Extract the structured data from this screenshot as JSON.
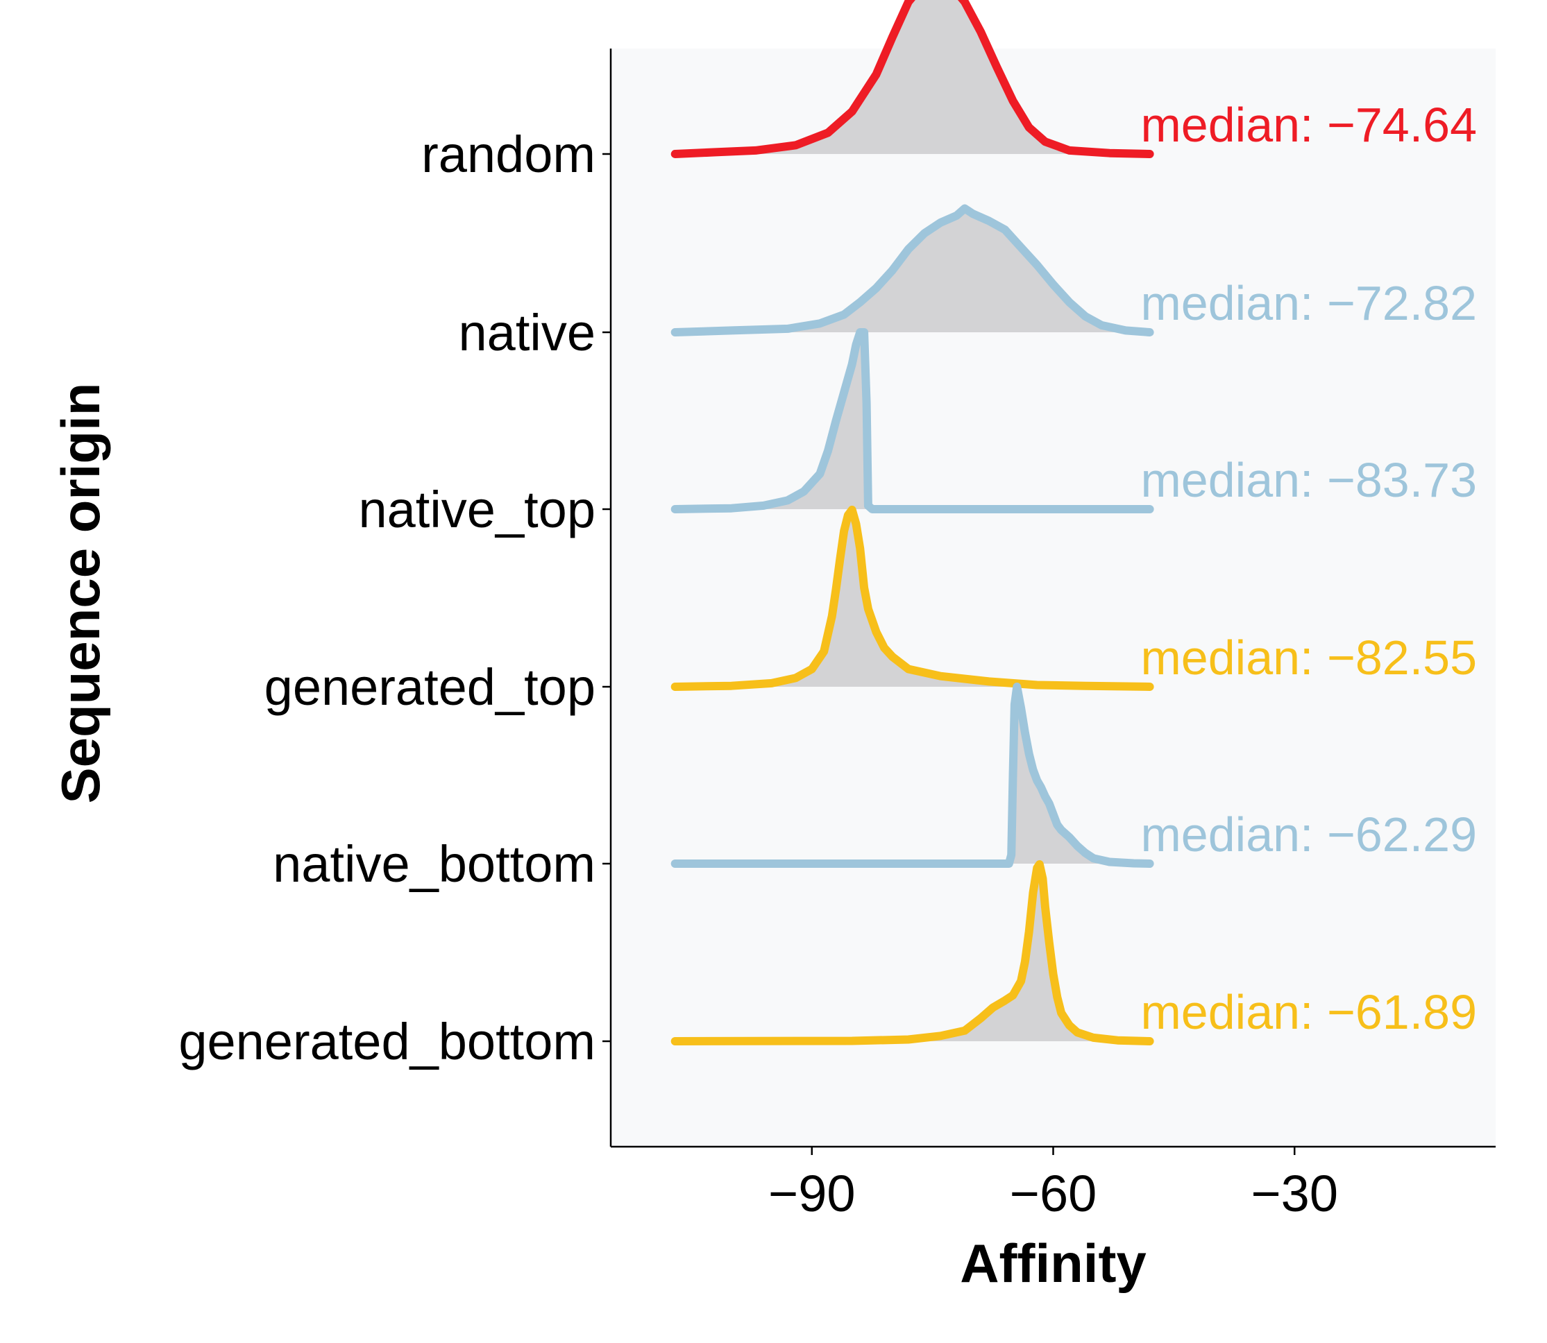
{
  "chart_data": {
    "type": "ridgeline",
    "xlabel": "Affinity",
    "ylabel": "Sequence origin",
    "xlim": [
      -115,
      -5
    ],
    "xticks": [
      -90,
      -60,
      -30
    ],
    "xtick_labels": [
      "−90",
      "−60",
      "−30"
    ],
    "background_color": "#f8f9fa",
    "ridge_fill_color": "#d3d3d5",
    "series": [
      {
        "name": "random",
        "color": "#ee1c25",
        "median": -74.64,
        "median_label": "median: −74.64",
        "density": [
          [
            -107,
            0
          ],
          [
            -102,
            0.01
          ],
          [
            -97,
            0.02
          ],
          [
            -92,
            0.05
          ],
          [
            -88,
            0.12
          ],
          [
            -85,
            0.24
          ],
          [
            -82,
            0.45
          ],
          [
            -80,
            0.66
          ],
          [
            -78,
            0.86
          ],
          [
            -76,
            0.97
          ],
          [
            -74.6,
            1.0
          ],
          [
            -73,
            0.97
          ],
          [
            -71,
            0.86
          ],
          [
            -69,
            0.69
          ],
          [
            -67,
            0.49
          ],
          [
            -65,
            0.3
          ],
          [
            -63,
            0.15
          ],
          [
            -61,
            0.07
          ],
          [
            -58,
            0.02
          ],
          [
            -53,
            0.005
          ],
          [
            -48,
            0
          ]
        ]
      },
      {
        "name": "native",
        "color": "#9ec5db",
        "median": -72.82,
        "median_label": "median: −72.82",
        "density": [
          [
            -107,
            0
          ],
          [
            -100,
            0.01
          ],
          [
            -93,
            0.02
          ],
          [
            -89,
            0.05
          ],
          [
            -86,
            0.1
          ],
          [
            -84,
            0.17
          ],
          [
            -82,
            0.25
          ],
          [
            -80,
            0.35
          ],
          [
            -78,
            0.47
          ],
          [
            -76,
            0.56
          ],
          [
            -74,
            0.62
          ],
          [
            -72,
            0.66
          ],
          [
            -71,
            0.7
          ],
          [
            -70,
            0.67
          ],
          [
            -68,
            0.63
          ],
          [
            -66,
            0.58
          ],
          [
            -64,
            0.48
          ],
          [
            -62,
            0.38
          ],
          [
            -60,
            0.27
          ],
          [
            -58,
            0.17
          ],
          [
            -56,
            0.09
          ],
          [
            -54,
            0.04
          ],
          [
            -51,
            0.01
          ],
          [
            -48,
            0
          ]
        ]
      },
      {
        "name": "native_top",
        "color": "#9ec5db",
        "median": -83.73,
        "median_label": "median: −83.73",
        "density": [
          [
            -107,
            0
          ],
          [
            -100,
            0.005
          ],
          [
            -96,
            0.02
          ],
          [
            -93,
            0.05
          ],
          [
            -91,
            0.1
          ],
          [
            -89,
            0.2
          ],
          [
            -88,
            0.33
          ],
          [
            -87,
            0.5
          ],
          [
            -86,
            0.66
          ],
          [
            -85,
            0.82
          ],
          [
            -84.5,
            0.93
          ],
          [
            -84,
            1.0
          ],
          [
            -83.5,
            1.0
          ],
          [
            -83.2,
            0.6
          ],
          [
            -83,
            0.02
          ],
          [
            -82.5,
            0
          ],
          [
            -48,
            0
          ]
        ]
      },
      {
        "name": "generated_top",
        "color": "#f7bf1a",
        "median": -82.55,
        "median_label": "median: −82.55",
        "density": [
          [
            -107,
            0
          ],
          [
            -100,
            0.005
          ],
          [
            -95,
            0.02
          ],
          [
            -92,
            0.05
          ],
          [
            -90,
            0.1
          ],
          [
            -88.5,
            0.2
          ],
          [
            -87.5,
            0.4
          ],
          [
            -87,
            0.55
          ],
          [
            -86.5,
            0.72
          ],
          [
            -86,
            0.88
          ],
          [
            -85.5,
            0.97
          ],
          [
            -85,
            1.0
          ],
          [
            -84.5,
            0.92
          ],
          [
            -84,
            0.78
          ],
          [
            -83.5,
            0.56
          ],
          [
            -83,
            0.44
          ],
          [
            -82,
            0.31
          ],
          [
            -81,
            0.22
          ],
          [
            -80,
            0.17
          ],
          [
            -78,
            0.1
          ],
          [
            -74,
            0.06
          ],
          [
            -68,
            0.03
          ],
          [
            -62,
            0.01
          ],
          [
            -56,
            0.005
          ],
          [
            -48,
            0
          ]
        ]
      },
      {
        "name": "native_bottom",
        "color": "#9ec5db",
        "median": -62.29,
        "median_label": "median: −62.29",
        "density": [
          [
            -107,
            0
          ],
          [
            -65.5,
            0
          ],
          [
            -65.2,
            0.05
          ],
          [
            -65,
            0.5
          ],
          [
            -64.8,
            0.9
          ],
          [
            -64.5,
            1.0
          ],
          [
            -64,
            0.88
          ],
          [
            -63.5,
            0.74
          ],
          [
            -63,
            0.62
          ],
          [
            -62.5,
            0.53
          ],
          [
            -62,
            0.47
          ],
          [
            -61.5,
            0.43
          ],
          [
            -61,
            0.38
          ],
          [
            -60.5,
            0.34
          ],
          [
            -60,
            0.28
          ],
          [
            -59.5,
            0.22
          ],
          [
            -59,
            0.19
          ],
          [
            -58,
            0.15
          ],
          [
            -57,
            0.1
          ],
          [
            -56,
            0.06
          ],
          [
            -55,
            0.03
          ],
          [
            -53,
            0.01
          ],
          [
            -50,
            0.002
          ],
          [
            -48,
            0
          ]
        ]
      },
      {
        "name": "generated_bottom",
        "color": "#f7bf1a",
        "median": -61.89,
        "median_label": "median: −61.89",
        "density": [
          [
            -107,
            0
          ],
          [
            -85,
            0.002
          ],
          [
            -78,
            0.01
          ],
          [
            -74,
            0.03
          ],
          [
            -71,
            0.06
          ],
          [
            -69,
            0.13
          ],
          [
            -67.5,
            0.19
          ],
          [
            -66,
            0.23
          ],
          [
            -65,
            0.26
          ],
          [
            -64,
            0.34
          ],
          [
            -63.5,
            0.45
          ],
          [
            -63,
            0.62
          ],
          [
            -62.5,
            0.84
          ],
          [
            -62,
            0.98
          ],
          [
            -61.7,
            1.0
          ],
          [
            -61.3,
            0.92
          ],
          [
            -61,
            0.76
          ],
          [
            -60.5,
            0.56
          ],
          [
            -60,
            0.38
          ],
          [
            -59.5,
            0.25
          ],
          [
            -59,
            0.16
          ],
          [
            -58,
            0.09
          ],
          [
            -57,
            0.05
          ],
          [
            -55,
            0.02
          ],
          [
            -52,
            0.005
          ],
          [
            -48,
            0
          ]
        ]
      }
    ]
  }
}
